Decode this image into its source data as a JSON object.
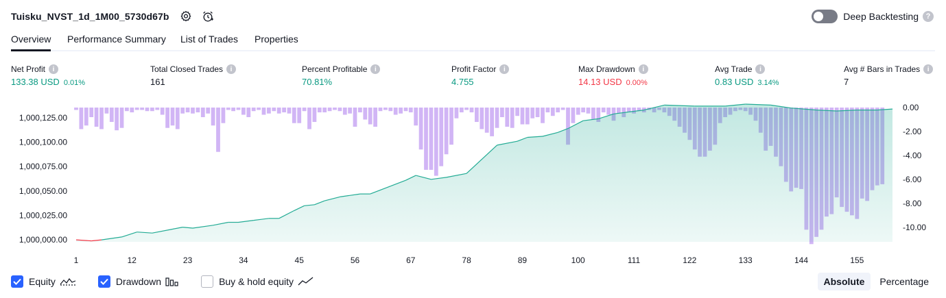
{
  "header": {
    "strategy_name": "Tuisku_NVST_1d_1M00_5730d67b",
    "settings_icon": "settings-icon",
    "add_alert_icon": "alert-clock-icon",
    "deep_backtesting_label": "Deep Backtesting",
    "deep_backtesting_on": false
  },
  "tabs": [
    {
      "label": "Overview",
      "active": true
    },
    {
      "label": "Performance Summary",
      "active": false
    },
    {
      "label": "List of Trades",
      "active": false
    },
    {
      "label": "Properties",
      "active": false
    }
  ],
  "metrics": [
    {
      "label": "Net Profit",
      "value": "133.38 USD",
      "sub": "0.01%",
      "color": "green"
    },
    {
      "label": "Total Closed Trades",
      "value": "161",
      "sub": "",
      "color": "dark"
    },
    {
      "label": "Percent Profitable",
      "value": "70.81%",
      "sub": "",
      "color": "green"
    },
    {
      "label": "Profit Factor",
      "value": "4.755",
      "sub": "",
      "color": "green"
    },
    {
      "label": "Max Drawdown",
      "value": "14.13 USD",
      "sub": "0.00%",
      "color": "red"
    },
    {
      "label": "Avg Trade",
      "value": "0.83 USD",
      "sub": "3.14%",
      "color": "green"
    },
    {
      "label": "Avg # Bars in Trades",
      "value": "7",
      "sub": "",
      "color": "dark"
    }
  ],
  "chart_data": {
    "type": "area",
    "equity_axis": {
      "ticks": [
        "1,000,000.00",
        "1,000,025.00",
        "1,000,050.00",
        "1,000,075.00",
        "1,000,100.00",
        "1,000,125.00"
      ],
      "range": [
        999998,
        1000139
      ]
    },
    "drawdown_axis": {
      "ticks": [
        "0.00",
        "-2.00",
        "-4.00",
        "-6.00",
        "-8.00",
        "-10.00"
      ],
      "range": [
        -11.5,
        0.4
      ]
    },
    "x_ticks": [
      "1",
      "12",
      "23",
      "34",
      "45",
      "56",
      "67",
      "78",
      "89",
      "100",
      "111",
      "122",
      "133",
      "144",
      "155"
    ],
    "x_range": [
      1,
      162
    ],
    "equity": [
      {
        "x": 1,
        "y": 1000000
      },
      {
        "x": 4,
        "y": 999999
      },
      {
        "x": 6,
        "y": 1000000
      },
      {
        "x": 10,
        "y": 1000003
      },
      {
        "x": 13,
        "y": 1000008
      },
      {
        "x": 16,
        "y": 1000007
      },
      {
        "x": 20,
        "y": 1000011
      },
      {
        "x": 22,
        "y": 1000013
      },
      {
        "x": 24,
        "y": 1000012
      },
      {
        "x": 28,
        "y": 1000015
      },
      {
        "x": 31,
        "y": 1000018
      },
      {
        "x": 33,
        "y": 1000018
      },
      {
        "x": 36,
        "y": 1000020
      },
      {
        "x": 39,
        "y": 1000022
      },
      {
        "x": 41,
        "y": 1000022
      },
      {
        "x": 44,
        "y": 1000030
      },
      {
        "x": 46,
        "y": 1000035
      },
      {
        "x": 48,
        "y": 1000036
      },
      {
        "x": 50,
        "y": 1000040
      },
      {
        "x": 53,
        "y": 1000044
      },
      {
        "x": 57,
        "y": 1000047
      },
      {
        "x": 59,
        "y": 1000047
      },
      {
        "x": 63,
        "y": 1000055
      },
      {
        "x": 66,
        "y": 1000061
      },
      {
        "x": 68,
        "y": 1000066
      },
      {
        "x": 71,
        "y": 1000062
      },
      {
        "x": 74,
        "y": 1000064
      },
      {
        "x": 78,
        "y": 1000068
      },
      {
        "x": 84,
        "y": 1000097
      },
      {
        "x": 88,
        "y": 1000101
      },
      {
        "x": 90,
        "y": 1000105
      },
      {
        "x": 93,
        "y": 1000106
      },
      {
        "x": 96,
        "y": 1000110
      },
      {
        "x": 98,
        "y": 1000114
      },
      {
        "x": 101,
        "y": 1000122
      },
      {
        "x": 104,
        "y": 1000124
      },
      {
        "x": 107,
        "y": 1000129
      },
      {
        "x": 110,
        "y": 1000131
      },
      {
        "x": 113,
        "y": 1000133
      },
      {
        "x": 117,
        "y": 1000138
      },
      {
        "x": 123,
        "y": 1000137
      },
      {
        "x": 129,
        "y": 1000137
      },
      {
        "x": 133,
        "y": 1000139
      },
      {
        "x": 138,
        "y": 1000138
      },
      {
        "x": 142,
        "y": 1000135
      },
      {
        "x": 147,
        "y": 1000133
      },
      {
        "x": 151,
        "y": 1000132
      },
      {
        "x": 155,
        "y": 1000133
      },
      {
        "x": 159,
        "y": 1000133
      },
      {
        "x": 162,
        "y": 1000134
      }
    ],
    "drawdown": [
      {
        "x": 1,
        "y": -0.2
      },
      {
        "x": 2,
        "y": -1.8
      },
      {
        "x": 3,
        "y": -1.5
      },
      {
        "x": 4,
        "y": -0.8
      },
      {
        "x": 5,
        "y": -1.6
      },
      {
        "x": 6,
        "y": -1.8
      },
      {
        "x": 7,
        "y": -0.5
      },
      {
        "x": 8,
        "y": -1.2
      },
      {
        "x": 9,
        "y": -1.9
      },
      {
        "x": 10,
        "y": -1.7
      },
      {
        "x": 11,
        "y": -0.3
      },
      {
        "x": 12,
        "y": -0.4
      },
      {
        "x": 13,
        "y": -0.2
      },
      {
        "x": 14,
        "y": -0.2
      },
      {
        "x": 15,
        "y": -0.3
      },
      {
        "x": 16,
        "y": -0.3
      },
      {
        "x": 17,
        "y": -0.2
      },
      {
        "x": 18,
        "y": -0.6
      },
      {
        "x": 19,
        "y": -1.7
      },
      {
        "x": 20,
        "y": -1.5
      },
      {
        "x": 21,
        "y": -1.8
      },
      {
        "x": 22,
        "y": -0.5
      },
      {
        "x": 23,
        "y": -0.4
      },
      {
        "x": 24,
        "y": -0.5
      },
      {
        "x": 25,
        "y": -0.4
      },
      {
        "x": 26,
        "y": -0.8
      },
      {
        "x": 27,
        "y": -0.5
      },
      {
        "x": 28,
        "y": -1.5
      },
      {
        "x": 29,
        "y": -3.7
      },
      {
        "x": 30,
        "y": -1.3
      },
      {
        "x": 31,
        "y": -0.2
      },
      {
        "x": 32,
        "y": -0.3
      },
      {
        "x": 33,
        "y": -0.2
      },
      {
        "x": 34,
        "y": -0.6
      },
      {
        "x": 35,
        "y": -0.8
      },
      {
        "x": 36,
        "y": -0.3
      },
      {
        "x": 37,
        "y": -0.2
      },
      {
        "x": 38,
        "y": -0.6
      },
      {
        "x": 39,
        "y": -0.5
      },
      {
        "x": 40,
        "y": -0.3
      },
      {
        "x": 41,
        "y": -0.5
      },
      {
        "x": 42,
        "y": -0.4
      },
      {
        "x": 43,
        "y": -0.5
      },
      {
        "x": 44,
        "y": -1.3
      },
      {
        "x": 45,
        "y": -1.3
      },
      {
        "x": 46,
        "y": -0.3
      },
      {
        "x": 47,
        "y": -1.8
      },
      {
        "x": 48,
        "y": -1.2
      },
      {
        "x": 49,
        "y": -0.4
      },
      {
        "x": 50,
        "y": -0.4
      },
      {
        "x": 51,
        "y": -0.3
      },
      {
        "x": 52,
        "y": -0.2
      },
      {
        "x": 53,
        "y": -0.3
      },
      {
        "x": 54,
        "y": -0.6
      },
      {
        "x": 55,
        "y": -0.5
      },
      {
        "x": 56,
        "y": -1.6
      },
      {
        "x": 57,
        "y": -0.4
      },
      {
        "x": 58,
        "y": -1.0
      },
      {
        "x": 59,
        "y": -1.4
      },
      {
        "x": 60,
        "y": -1.6
      },
      {
        "x": 61,
        "y": -0.3
      },
      {
        "x": 62,
        "y": -0.2
      },
      {
        "x": 63,
        "y": -0.3
      },
      {
        "x": 64,
        "y": -0.6
      },
      {
        "x": 65,
        "y": -0.5
      },
      {
        "x": 66,
        "y": -0.3
      },
      {
        "x": 67,
        "y": -0.4
      },
      {
        "x": 68,
        "y": -1.5
      },
      {
        "x": 69,
        "y": -3.5
      },
      {
        "x": 70,
        "y": -5.2
      },
      {
        "x": 71,
        "y": -5.2
      },
      {
        "x": 72,
        "y": -5.7
      },
      {
        "x": 73,
        "y": -4.9
      },
      {
        "x": 74,
        "y": -3.9
      },
      {
        "x": 75,
        "y": -3.1
      },
      {
        "x": 76,
        "y": -0.9
      },
      {
        "x": 77,
        "y": -0.4
      },
      {
        "x": 78,
        "y": -0.2
      },
      {
        "x": 79,
        "y": -0.4
      },
      {
        "x": 80,
        "y": -1.2
      },
      {
        "x": 81,
        "y": -1.8
      },
      {
        "x": 82,
        "y": -2.1
      },
      {
        "x": 83,
        "y": -2.4
      },
      {
        "x": 84,
        "y": -1.7
      },
      {
        "x": 85,
        "y": -0.8
      },
      {
        "x": 86,
        "y": -1.6
      },
      {
        "x": 87,
        "y": -1.7
      },
      {
        "x": 88,
        "y": -0.7
      },
      {
        "x": 89,
        "y": -1.4
      },
      {
        "x": 90,
        "y": -1.4
      },
      {
        "x": 91,
        "y": -0.9
      },
      {
        "x": 92,
        "y": -0.8
      },
      {
        "x": 93,
        "y": -1.3
      },
      {
        "x": 94,
        "y": -0.4
      },
      {
        "x": 95,
        "y": -0.7
      },
      {
        "x": 96,
        "y": -0.4
      },
      {
        "x": 97,
        "y": -0.2
      },
      {
        "x": 98,
        "y": -3.1
      },
      {
        "x": 99,
        "y": -1.3
      },
      {
        "x": 100,
        "y": -0.6
      },
      {
        "x": 101,
        "y": -0.4
      },
      {
        "x": 102,
        "y": -0.5
      },
      {
        "x": 103,
        "y": -1.0
      },
      {
        "x": 104,
        "y": -1.2
      },
      {
        "x": 105,
        "y": -0.4
      },
      {
        "x": 106,
        "y": -0.6
      },
      {
        "x": 107,
        "y": -1.1
      },
      {
        "x": 108,
        "y": -0.5
      },
      {
        "x": 109,
        "y": -0.8
      },
      {
        "x": 110,
        "y": -0.4
      },
      {
        "x": 111,
        "y": -0.5
      },
      {
        "x": 112,
        "y": -0.3
      },
      {
        "x": 113,
        "y": -0.4
      },
      {
        "x": 114,
        "y": -0.2
      },
      {
        "x": 115,
        "y": -0.4
      },
      {
        "x": 116,
        "y": -0.2
      },
      {
        "x": 117,
        "y": -0.4
      },
      {
        "x": 118,
        "y": -0.7
      },
      {
        "x": 119,
        "y": -1.1
      },
      {
        "x": 120,
        "y": -1.6
      },
      {
        "x": 121,
        "y": -2.1
      },
      {
        "x": 122,
        "y": -2.7
      },
      {
        "x": 123,
        "y": -3.5
      },
      {
        "x": 124,
        "y": -4.1
      },
      {
        "x": 125,
        "y": -4.1
      },
      {
        "x": 126,
        "y": -3.6
      },
      {
        "x": 127,
        "y": -3.1
      },
      {
        "x": 128,
        "y": -1.3
      },
      {
        "x": 129,
        "y": -0.8
      },
      {
        "x": 130,
        "y": -0.6
      },
      {
        "x": 131,
        "y": -0.3
      },
      {
        "x": 132,
        "y": -0.2
      },
      {
        "x": 133,
        "y": -0.3
      },
      {
        "x": 134,
        "y": -0.6
      },
      {
        "x": 135,
        "y": -1.1
      },
      {
        "x": 136,
        "y": -2.1
      },
      {
        "x": 137,
        "y": -3.6
      },
      {
        "x": 138,
        "y": -3.2
      },
      {
        "x": 139,
        "y": -4.1
      },
      {
        "x": 140,
        "y": -4.9
      },
      {
        "x": 141,
        "y": -6.2
      },
      {
        "x": 142,
        "y": -7.0
      },
      {
        "x": 143,
        "y": -6.7
      },
      {
        "x": 144,
        "y": -6.8
      },
      {
        "x": 145,
        "y": -10.2
      },
      {
        "x": 146,
        "y": -11.4
      },
      {
        "x": 147,
        "y": -10.8
      },
      {
        "x": 148,
        "y": -10.2
      },
      {
        "x": 149,
        "y": -9.1
      },
      {
        "x": 150,
        "y": -8.9
      },
      {
        "x": 151,
        "y": -7.5
      },
      {
        "x": 152,
        "y": -8.3
      },
      {
        "x": 153,
        "y": -8.7
      },
      {
        "x": 154,
        "y": -9.0
      },
      {
        "x": 155,
        "y": -9.3
      },
      {
        "x": 156,
        "y": -7.6
      },
      {
        "x": 157,
        "y": -7.8
      },
      {
        "x": 158,
        "y": -6.9
      },
      {
        "x": 159,
        "y": -6.5
      },
      {
        "x": 160,
        "y": -6.4
      }
    ],
    "colors": {
      "equity_line": "#22ab94",
      "equity_line_negative": "#f23645",
      "equity_fill": "#22ab94",
      "drawdown_bar": "#c9a8f3",
      "axis_text": "#131722",
      "right_axis_text": "#131722"
    }
  },
  "legend": [
    {
      "label": "Equity",
      "checked": true,
      "glyph": "equity-line-icon"
    },
    {
      "label": "Drawdown",
      "checked": true,
      "glyph": "drawdown-bars-icon"
    },
    {
      "label": "Buy & hold equity",
      "checked": false,
      "glyph": "buy-hold-line-icon"
    }
  ],
  "mode": {
    "absolute_label": "Absolute",
    "percentage_label": "Percentage",
    "selected": "Absolute"
  }
}
